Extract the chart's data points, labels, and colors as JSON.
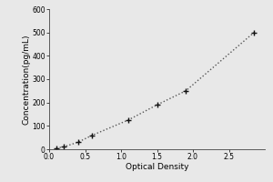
{
  "x": [
    0.1,
    0.2,
    0.4,
    0.6,
    1.1,
    1.5,
    1.9,
    2.85
  ],
  "y": [
    5,
    10,
    30,
    60,
    125,
    190,
    250,
    500
  ],
  "xlabel": "Optical Density",
  "ylabel": "Concentration(pg/mL)",
  "xlim": [
    0,
    3.0
  ],
  "ylim": [
    0,
    600
  ],
  "xticks": [
    0,
    0.5,
    1.0,
    1.5,
    2.0,
    2.5
  ],
  "yticks": [
    0,
    100,
    200,
    300,
    400,
    500,
    600
  ],
  "line_color": "#555555",
  "marker": "+",
  "marker_size": 5,
  "marker_color": "#111111",
  "line_style": "dotted",
  "background_color": "#e8e8e8",
  "plot_bg_color": "#e8e8e8",
  "label_fontsize": 6.5,
  "tick_fontsize": 5.5,
  "linewidth": 1.0
}
